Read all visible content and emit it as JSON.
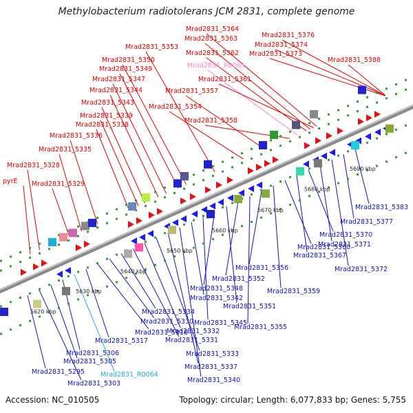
{
  "title": "Methylobacterium radiotolerans JCM 2831, complete genome",
  "accession": "Accession: NC_010505",
  "summary": "Topology: circular; Length: 6,077,833 bp; Genes: 5,755",
  "colors": {
    "forward_label": "#e00000",
    "reverse_label": "#1010c0",
    "rna_forward": "#ff88cc",
    "rna_reverse": "#22aadd",
    "backbone": "#888888"
  },
  "scale_labels": [
    "5620 kbp",
    "5630 kbp",
    "5640 kbp",
    "5650 kbp",
    "5660 kbp",
    "5670 kbp",
    "5680 kbp",
    "5690 kbp"
  ],
  "forward_labels": [
    "pyrE",
    "Mrad2831_5328",
    "Mrad2831_5329",
    "Mrad2831_5335",
    "Mrad2831_5336",
    "Mrad2831_5338",
    "Mrad2831_5339",
    "Mrad2831_5343",
    "Mrad2831_5344",
    "Mrad2831_5347",
    "Mrad2831_5349",
    "Mrad2831_5350",
    "Mrad2831_5353",
    "Mrad2831_5354",
    "Mrad2831_5357",
    "Mrad2831_5358",
    "Mrad2831_R0065",
    "Mrad2831_5361",
    "Mrad2831_5362",
    "Mrad2831_5363",
    "Mrad2831_5364",
    "Mrad2831_5373",
    "Mrad2831_5374",
    "Mrad2831_5376",
    "Mrad2831_5388"
  ],
  "reverse_labels": [
    "Mrad2831_5295",
    "Mrad2831_5303",
    "Mrad2831_5305",
    "Mrad2831_5306",
    "Mrad2831_R0064",
    "Mrad2831_5317",
    "Mrad2831_5318",
    "Mrad2831_5330",
    "Mrad2831_5334",
    "Mrad2831_5331",
    "Mrad2831_5332",
    "Mrad2831_5333",
    "Mrad2831_5337",
    "Mrad2831_5340",
    "Mrad2831_5342",
    "Mrad2831_5345",
    "Mrad2831_5348",
    "Mrad2831_5351",
    "Mrad2831_5352",
    "Mrad2831_5355",
    "Mrad2831_5356",
    "Mrad2831_5359",
    "Mrad2831_5360",
    "Mrad2831_5367",
    "Mrad2831_5370",
    "Mrad2831_5371",
    "Mrad2831_5372",
    "Mrad2831_5377",
    "Mrad2831_5383"
  ]
}
